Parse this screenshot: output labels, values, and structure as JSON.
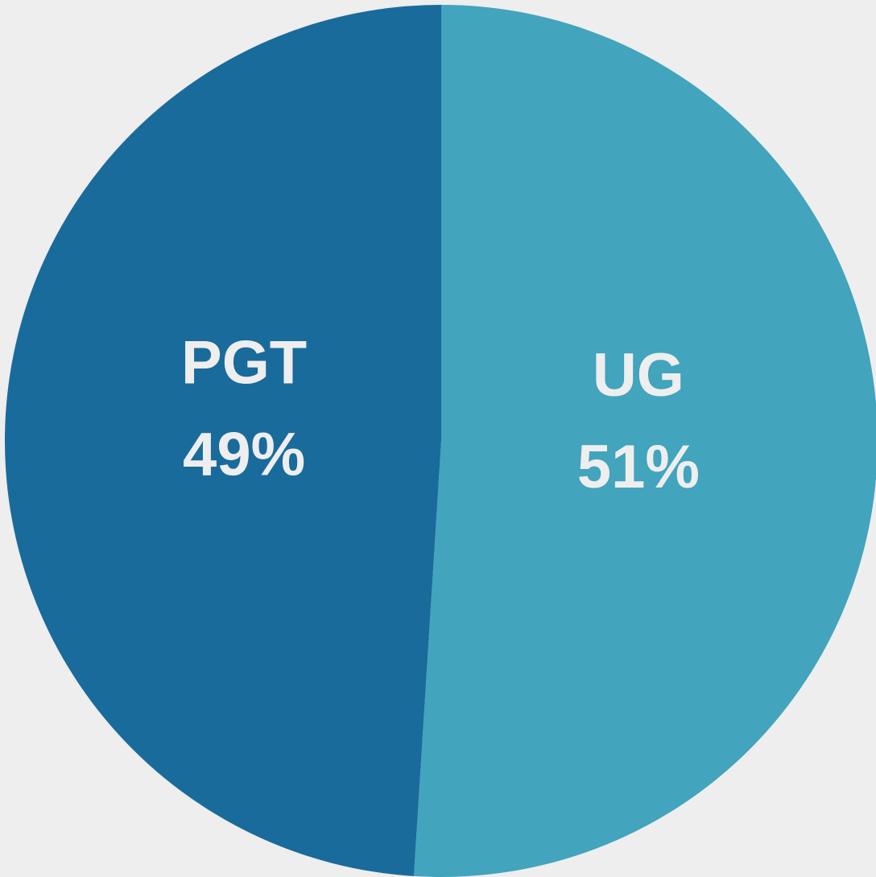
{
  "chart_data": {
    "type": "pie",
    "categories": [
      "UG",
      "PGT"
    ],
    "values": [
      51,
      49
    ],
    "value_labels": [
      "51%",
      "49%"
    ],
    "colors": [
      "#42a4bd",
      "#196b9c"
    ]
  }
}
